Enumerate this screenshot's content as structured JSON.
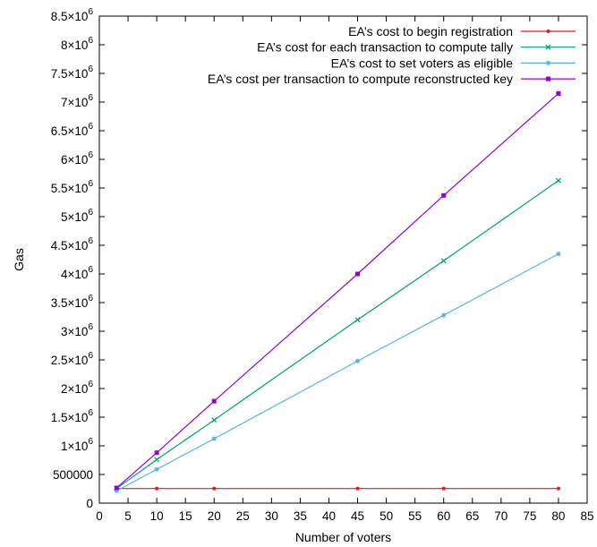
{
  "chart_data": {
    "type": "line",
    "xlabel": "Number of voters",
    "ylabel": "Gas",
    "xlim": [
      0,
      85
    ],
    "ylim": [
      0,
      8500000
    ],
    "x_ticks": [
      {
        "value": 0,
        "label": "0"
      },
      {
        "value": 5,
        "label": "5"
      },
      {
        "value": 10,
        "label": "10"
      },
      {
        "value": 15,
        "label": "15"
      },
      {
        "value": 20,
        "label": "20"
      },
      {
        "value": 25,
        "label": "25"
      },
      {
        "value": 30,
        "label": "30"
      },
      {
        "value": 35,
        "label": "35"
      },
      {
        "value": 40,
        "label": "40"
      },
      {
        "value": 45,
        "label": "45"
      },
      {
        "value": 50,
        "label": "50"
      },
      {
        "value": 55,
        "label": "55"
      },
      {
        "value": 60,
        "label": "60"
      },
      {
        "value": 65,
        "label": "65"
      },
      {
        "value": 70,
        "label": "70"
      },
      {
        "value": 75,
        "label": "75"
      },
      {
        "value": 80,
        "label": "80"
      },
      {
        "value": 85,
        "label": "85"
      }
    ],
    "y_ticks": [
      {
        "value": 0,
        "mant": "0",
        "exp": ""
      },
      {
        "value": 500000,
        "mant": "500000",
        "exp": ""
      },
      {
        "value": 1000000,
        "mant": "1×10",
        "exp": "6"
      },
      {
        "value": 1500000,
        "mant": "1.5×10",
        "exp": "6"
      },
      {
        "value": 2000000,
        "mant": "2×10",
        "exp": "6"
      },
      {
        "value": 2500000,
        "mant": "2.5×10",
        "exp": "6"
      },
      {
        "value": 3000000,
        "mant": "3×10",
        "exp": "6"
      },
      {
        "value": 3500000,
        "mant": "3.5×10",
        "exp": "6"
      },
      {
        "value": 4000000,
        "mant": "4×10",
        "exp": "6"
      },
      {
        "value": 4500000,
        "mant": "4.5×10",
        "exp": "6"
      },
      {
        "value": 5000000,
        "mant": "5×10",
        "exp": "6"
      },
      {
        "value": 5500000,
        "mant": "5.5×10",
        "exp": "6"
      },
      {
        "value": 6000000,
        "mant": "6×10",
        "exp": "6"
      },
      {
        "value": 6500000,
        "mant": "6.5×10",
        "exp": "6"
      },
      {
        "value": 7000000,
        "mant": "7×10",
        "exp": "6"
      },
      {
        "value": 7500000,
        "mant": "7.5×10",
        "exp": "6"
      },
      {
        "value": 8000000,
        "mant": "8×10",
        "exp": "6"
      },
      {
        "value": 8500000,
        "mant": "8.5×10",
        "exp": "6"
      }
    ],
    "grid": false,
    "legend_position": "top-right",
    "series": [
      {
        "name": "EA’s cost to begin registration",
        "color": "#e41a1c",
        "marker": "dot",
        "x": [
          3,
          10,
          20,
          45,
          60,
          80
        ],
        "y": [
          255000,
          255000,
          255000,
          255000,
          255000,
          255000
        ]
      },
      {
        "name": "EA’s cost for each transaction to compute tally",
        "color": "#009e73",
        "marker": "cross",
        "x": [
          3,
          10,
          20,
          45,
          60,
          80
        ],
        "y": [
          255000,
          760000,
          1450000,
          3200000,
          4230000,
          5630000
        ]
      },
      {
        "name": "EA’s cost to set voters as eligible",
        "color": "#56b4e9",
        "marker": "star",
        "x": [
          3,
          10,
          20,
          45,
          60,
          80
        ],
        "y": [
          215000,
          590000,
          1125000,
          2480000,
          3280000,
          4350000
        ]
      },
      {
        "name": "EA’s cost per transaction to compute reconstructed key",
        "color": "#9400d3",
        "marker": "square",
        "x": [
          3,
          10,
          20,
          45,
          60,
          80
        ],
        "y": [
          265000,
          880000,
          1780000,
          4000000,
          5370000,
          7150000
        ]
      }
    ]
  }
}
